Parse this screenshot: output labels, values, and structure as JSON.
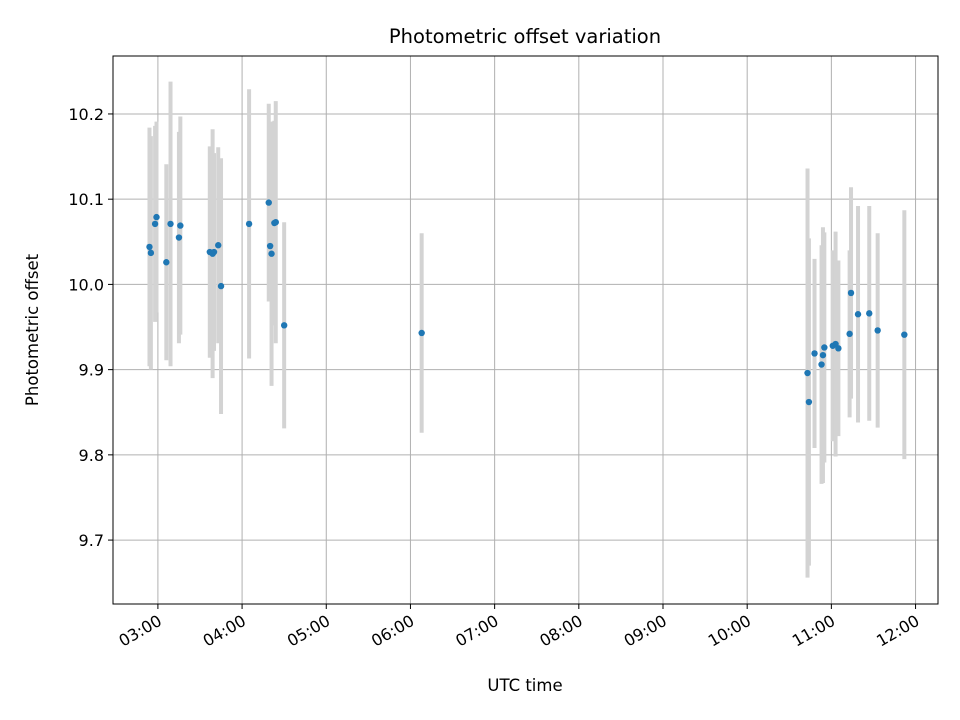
{
  "chart_data": {
    "type": "scatter",
    "title": "Photometric offset variation",
    "xlabel": "UTC time",
    "ylabel": "Photometric offset",
    "x_unit": "UTC time (HH:MM)",
    "xlim": [
      "02:28",
      "12:16"
    ],
    "ylim": [
      9.625,
      10.268
    ],
    "grid": true,
    "x_ticks": [
      "03:00",
      "04:00",
      "05:00",
      "06:00",
      "07:00",
      "08:00",
      "09:00",
      "10:00",
      "11:00",
      "12:00"
    ],
    "y_ticks": [
      "9.7",
      "9.8",
      "9.9",
      "10.0",
      "10.1",
      "10.2"
    ],
    "point_color": "#1f77b4",
    "errorbar_color": "#d3d3d3",
    "points": [
      {
        "x": "02:54",
        "y": 10.044,
        "err": 0.14
      },
      {
        "x": "02:55",
        "y": 10.037,
        "err": 0.137
      },
      {
        "x": "02:58",
        "y": 10.071,
        "err": 0.115
      },
      {
        "x": "02:59",
        "y": 10.079,
        "err": 0.112
      },
      {
        "x": "03:06",
        "y": 10.026,
        "err": 0.115
      },
      {
        "x": "03:09",
        "y": 10.071,
        "err": 0.167
      },
      {
        "x": "03:15",
        "y": 10.055,
        "err": 0.124
      },
      {
        "x": "03:16",
        "y": 10.069,
        "err": 0.128
      },
      {
        "x": "03:37",
        "y": 10.038,
        "err": 0.124
      },
      {
        "x": "03:39",
        "y": 10.036,
        "err": 0.146
      },
      {
        "x": "03:40",
        "y": 10.038,
        "err": 0.116
      },
      {
        "x": "03:43",
        "y": 10.046,
        "err": 0.115
      },
      {
        "x": "03:45",
        "y": 9.998,
        "err": 0.15
      },
      {
        "x": "04:05",
        "y": 10.071,
        "err": 0.158
      },
      {
        "x": "04:19",
        "y": 10.096,
        "err": 0.116
      },
      {
        "x": "04:20",
        "y": 10.045,
        "err": 0.064
      },
      {
        "x": "04:21",
        "y": 10.036,
        "err": 0.155
      },
      {
        "x": "04:23",
        "y": 10.072,
        "err": 0.12
      },
      {
        "x": "04:24",
        "y": 10.073,
        "err": 0.142
      },
      {
        "x": "04:30",
        "y": 9.952,
        "err": 0.121
      },
      {
        "x": "06:08",
        "y": 9.943,
        "err": 0.117
      },
      {
        "x": "10:43",
        "y": 9.896,
        "err": 0.24
      },
      {
        "x": "10:44",
        "y": 9.862,
        "err": 0.192
      },
      {
        "x": "10:48",
        "y": 9.919,
        "err": 0.111
      },
      {
        "x": "10:53",
        "y": 9.906,
        "err": 0.14
      },
      {
        "x": "10:54",
        "y": 9.917,
        "err": 0.15
      },
      {
        "x": "10:55",
        "y": 9.926,
        "err": 0.135
      },
      {
        "x": "11:01",
        "y": 9.928,
        "err": 0.112
      },
      {
        "x": "11:03",
        "y": 9.93,
        "err": 0.132
      },
      {
        "x": "11:05",
        "y": 9.925,
        "err": 0.103
      },
      {
        "x": "11:13",
        "y": 9.942,
        "err": 0.098
      },
      {
        "x": "11:14",
        "y": 9.99,
        "err": 0.124
      },
      {
        "x": "11:19",
        "y": 9.965,
        "err": 0.127
      },
      {
        "x": "11:27",
        "y": 9.966,
        "err": 0.126
      },
      {
        "x": "11:33",
        "y": 9.946,
        "err": 0.114
      },
      {
        "x": "11:52",
        "y": 9.941,
        "err": 0.146
      }
    ]
  }
}
